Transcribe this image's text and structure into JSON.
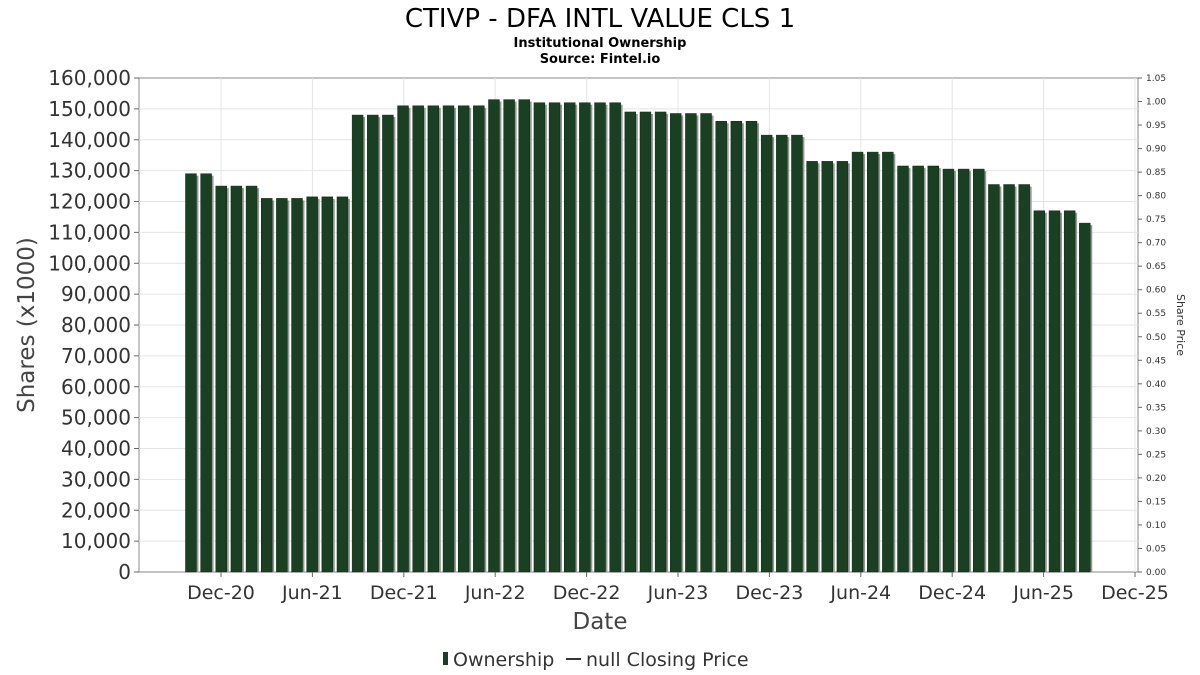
{
  "title": "CTIVP - DFA INTL VALUE CLS 1",
  "subtitle_lines": [
    "Institutional Ownership",
    "Source: Fintel.io"
  ],
  "legend": [
    {
      "label": "Ownership",
      "color": "#1a3f22"
    },
    {
      "label": "null Closing Price",
      "color": "#333333"
    }
  ],
  "chart_data": {
    "type": "bar",
    "title": "CTIVP - DFA INTL VALUE CLS 1",
    "xlabel": "Date",
    "ylabel": "Shares (x1000)",
    "y2label": "Share Price",
    "ylim": [
      0,
      160000
    ],
    "y2lim": [
      0,
      1.05
    ],
    "yticks": [
      "0",
      "10,000",
      "20,000",
      "30,000",
      "40,000",
      "50,000",
      "60,000",
      "70,000",
      "80,000",
      "90,000",
      "100,000",
      "110,000",
      "120,000",
      "130,000",
      "140,000",
      "150,000",
      "160,000"
    ],
    "y2ticks": [
      "0.00",
      "0.05",
      "0.10",
      "0.15",
      "0.20",
      "0.25",
      "0.30",
      "0.35",
      "0.40",
      "0.45",
      "0.50",
      "0.55",
      "0.60",
      "0.65",
      "0.70",
      "0.75",
      "0.80",
      "0.85",
      "0.90",
      "0.95",
      "1.00",
      "1.05"
    ],
    "xticks": [
      "Dec-20",
      "Jun-21",
      "Dec-21",
      "Jun-22",
      "Dec-22",
      "Jun-23",
      "Dec-23",
      "Jun-24",
      "Dec-24",
      "Jun-25",
      "Dec-25"
    ],
    "grid": true,
    "series": [
      {
        "name": "Ownership",
        "color": "#1a3f22",
        "values": [
          129000,
          129000,
          125000,
          125000,
          125000,
          121000,
          121000,
          121000,
          121500,
          121500,
          121500,
          148000,
          148000,
          148000,
          151000,
          151000,
          151000,
          151000,
          151000,
          151000,
          153000,
          153000,
          153000,
          152000,
          152000,
          152000,
          152000,
          152000,
          152000,
          149000,
          149000,
          149000,
          148500,
          148500,
          148500,
          146000,
          146000,
          146000,
          141500,
          141500,
          141500,
          133000,
          133000,
          133000,
          136000,
          136000,
          136000,
          131500,
          131500,
          131500,
          130500,
          130500,
          130500,
          125500,
          125500,
          125500,
          117000,
          117000,
          117000,
          113000
        ]
      }
    ]
  }
}
